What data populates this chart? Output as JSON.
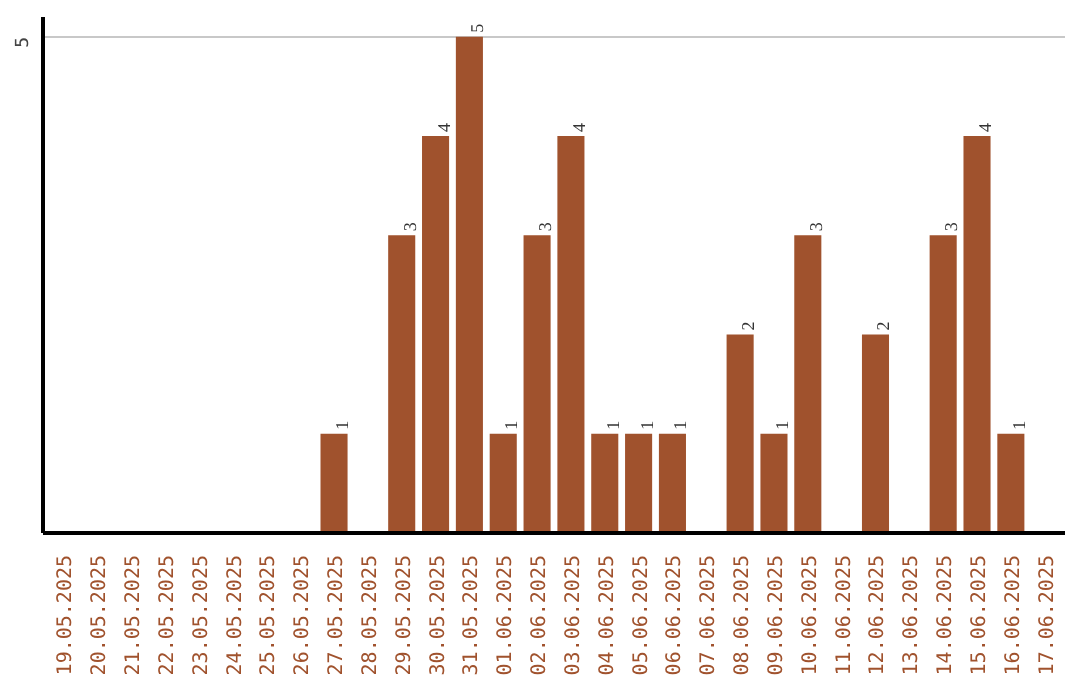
{
  "chart_data": {
    "type": "bar",
    "categories": [
      "19.05.2025",
      "20.05.2025",
      "21.05.2025",
      "22.05.2025",
      "23.05.2025",
      "24.05.2025",
      "25.05.2025",
      "26.05.2025",
      "27.05.2025",
      "28.05.2025",
      "29.05.2025",
      "30.05.2025",
      "31.05.2025",
      "01.06.2025",
      "02.06.2025",
      "03.06.2025",
      "04.06.2025",
      "05.06.2025",
      "06.06.2025",
      "07.06.2025",
      "08.06.2025",
      "09.06.2025",
      "10.06.2025",
      "11.06.2025",
      "12.06.2025",
      "13.06.2025",
      "14.06.2025",
      "15.06.2025",
      "16.06.2025",
      "17.06.2025"
    ],
    "values": [
      0,
      0,
      0,
      0,
      0,
      0,
      0,
      0,
      1,
      0,
      3,
      4,
      5,
      1,
      3,
      4,
      1,
      1,
      1,
      0,
      2,
      1,
      3,
      0,
      2,
      0,
      3,
      4,
      1,
      0
    ],
    "value_labels": [
      null,
      null,
      null,
      null,
      null,
      null,
      null,
      null,
      "1",
      null,
      "3",
      "4",
      "5",
      "1",
      "3",
      "4",
      "1",
      "1",
      "1",
      null,
      "2",
      "1",
      "3",
      null,
      "2",
      null,
      "3",
      "4",
      "1",
      null
    ],
    "color": "#a0522d",
    "ylim": [
      0,
      5.2
    ],
    "yticks": [
      5
    ],
    "grid": "y"
  }
}
